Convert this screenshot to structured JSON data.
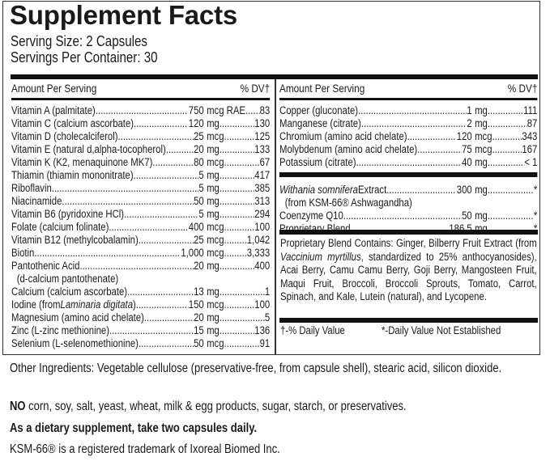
{
  "title": "Supplement Facts",
  "serving_size": "Serving Size: 2 Capsules",
  "servings_per_container": "Servings Per Container: 30",
  "header": {
    "amount": "Amount Per Serving",
    "dv": "% DV†"
  },
  "left_rows": [
    {
      "name": "Vitamin A (palmitate)",
      "amount": "750",
      "unit": "mcg RAE",
      "dv": "83"
    },
    {
      "name": "Vitamin C (calcium ascorbate)",
      "amount": "120",
      "unit": "mg",
      "dv": "130"
    },
    {
      "name": "Vitamin D (cholecalciferol)",
      "amount": "25",
      "unit": "mcg",
      "dv": "125"
    },
    {
      "name": "Vitamin E (natural d,alpha-tocopherol)",
      "amount": "20",
      "unit": "mg",
      "dv": "133"
    },
    {
      "name": "Vitamin K (K2, menaquinone MK7)",
      "amount": "80",
      "unit": "mcg",
      "dv": "67"
    },
    {
      "name": "Thiamin (thiamin mononitrate)",
      "amount": "5",
      "unit": "mg",
      "dv": "417"
    },
    {
      "name": "Riboflavin",
      "amount": "5",
      "unit": "mg",
      "dv": "385"
    },
    {
      "name": "Niacinamide",
      "amount": "50",
      "unit": "mg",
      "dv": "313"
    },
    {
      "name": "Vitamin B6 (pyridoxine HCl)",
      "amount": "5",
      "unit": "mg",
      "dv": "294"
    },
    {
      "name": "Folate (calcium folinate)",
      "amount": "400",
      "unit": "mcg",
      "dv": "100"
    },
    {
      "name": "Vitamin B12 (methylcobalamin)",
      "amount": "25",
      "unit": "mcg",
      "dv": "1,042"
    },
    {
      "name": "Biotin",
      "amount": "1,000",
      "unit": "mcg",
      "dv": "3,333"
    },
    {
      "name": "Pantothenic Acid",
      "amount": "20",
      "unit": "mg",
      "dv": "400",
      "sub": "(d-calcium pantothenate)"
    },
    {
      "name": "Calcium (calcium ascorbate)",
      "amount": "13",
      "unit": "mg",
      "dv": "1"
    },
    {
      "name": "Iodine (from ",
      "italic": "Laminaria digitata",
      "post": ")",
      "amount": "150",
      "unit": "mcg",
      "dv": "100"
    },
    {
      "name": "Magnesium (amino acid chelate)",
      "amount": "20",
      "unit": "mg",
      "dv": "5"
    },
    {
      "name": "Zinc (L-zinc methionine)",
      "amount": "15",
      "unit": "mg",
      "dv": "136"
    },
    {
      "name": "Selenium (L-selenomethionine)",
      "amount": "50",
      "unit": "mcg",
      "dv": "91"
    }
  ],
  "right_rows": [
    {
      "name": "Copper (gluconate)",
      "amount": "1",
      "unit": "mg",
      "dv": "111"
    },
    {
      "name": "Manganese (citrate)",
      "amount": "2",
      "unit": "mg",
      "dv": "87"
    },
    {
      "name": "Chromium (amino acid chelate)",
      "amount": "120",
      "unit": "mcg",
      "dv": "343"
    },
    {
      "name": "Molybdenum (amino acid chelate)",
      "amount": "75",
      "unit": "mcg",
      "dv": "167"
    },
    {
      "name": "Potassium (citrate)",
      "amount": "40",
      "unit": "mg",
      "dv": "< 1"
    }
  ],
  "right_rows2": [
    {
      "italic": "Withania somnifera",
      "post": " Extract",
      "amount": "300",
      "unit": "mg",
      "dv": "*",
      "sub": "(from KSM-66® Ashwagandha)"
    },
    {
      "name": "Coenzyme Q10",
      "amount": "50",
      "unit": "mg",
      "dv": "*"
    },
    {
      "name": "Proprietary Blend",
      "amount": "186.5",
      "unit": "mg",
      "dv": "*"
    }
  ],
  "blend": {
    "pre": "Proprietary Blend Contains: Ginger, Bilberry Fruit Extract (from ",
    "italic": "Vaccinium myrtillus",
    "post": ", standardized to 25% anthocyanosides), Acai Berry, Camu Camu Berry, Goji Berry, Mangosteen Fruit, Maqui Fruit, Broccoli, Broccoli Sprouts, Tomato, Carrot, Spinach, and Kale, Lutein (natural), and Lycopene."
  },
  "footnotes": {
    "dv": "†-% Daily Value",
    "not_established": "*-Daily Value Not Established"
  },
  "other_ingredients": "Other Ingredients: Vegetable cellulose (preservative-free, from capsule shell), stearic acid, silicon dioxide.",
  "no_line": {
    "bold": "NO",
    "rest": " corn, soy, salt, yeast, wheat, milk & egg products, sugar, starch, or preservatives."
  },
  "directions": "As a dietary supplement, take two capsules daily.",
  "trademark": "KSM-66® is a registered trademark of Ixoreal Biomed Inc."
}
